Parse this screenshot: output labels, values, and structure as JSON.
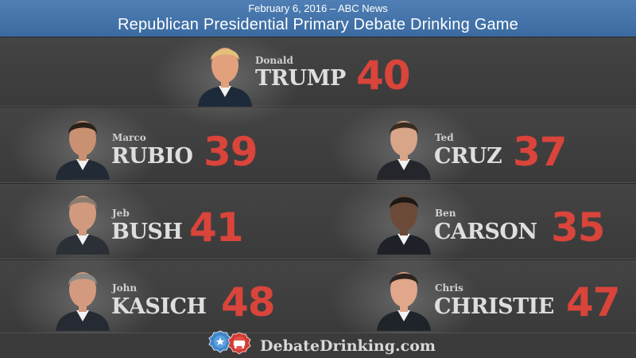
{
  "header": {
    "date": "February 6, 2016 – ABC News",
    "title": "Republican Presidential Primary Debate Drinking Game"
  },
  "candidates": [
    {
      "first": "Donald",
      "last": "TRUMP",
      "count": "40",
      "skin": "#e2a07c",
      "hair": "#e3c17a",
      "suit": "#1d2a3a"
    },
    {
      "first": "Marco",
      "last": "RUBIO",
      "count": "39",
      "skin": "#c99072",
      "hair": "#2b2018",
      "suit": "#222a35"
    },
    {
      "first": "Ted",
      "last": "CRUZ",
      "count": "37",
      "skin": "#d9a589",
      "hair": "#3a2c22",
      "suit": "#24262b"
    },
    {
      "first": "Jeb",
      "last": "BUSH",
      "count": "41",
      "skin": "#d19a7f",
      "hair": "#8a7a6c",
      "suit": "#2b2f36"
    },
    {
      "first": "Ben",
      "last": "CARSON",
      "count": "35",
      "skin": "#6b4a38",
      "hair": "#1e1814",
      "suit": "#1e2127"
    },
    {
      "first": "John",
      "last": "KASICH",
      "count": "48",
      "skin": "#d39a7f",
      "hair": "#8e8a86",
      "suit": "#262b33"
    },
    {
      "first": "Chris",
      "last": "CHRISTIE",
      "count": "47",
      "skin": "#e0a78a",
      "hair": "#2c241f",
      "suit": "#1f232a"
    }
  ],
  "footer": {
    "site": "DebateDrinking.com"
  },
  "colors": {
    "accent": "#d9443b",
    "header": "#4775a9",
    "background": "#3d3d3d"
  }
}
